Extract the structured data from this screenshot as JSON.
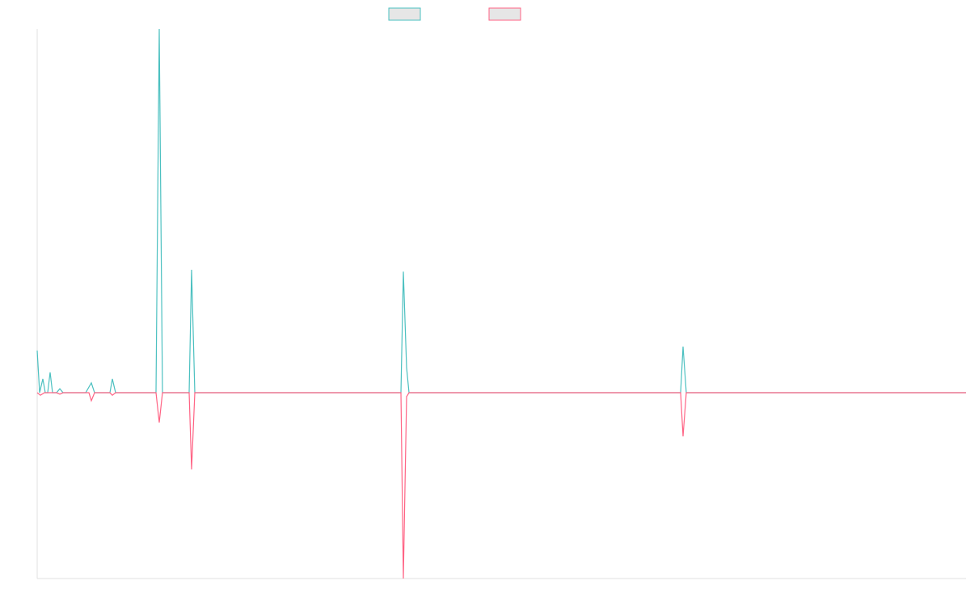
{
  "chart_data": {
    "type": "line",
    "xlim": [
      0,
      1149
    ],
    "ylim": [
      -51.1,
      100
    ],
    "series": [
      {
        "color": "#4bc0c0",
        "x": [
          0,
          3,
          7,
          10,
          13,
          16,
          19,
          24,
          28,
          32,
          60,
          67,
          71,
          90,
          93,
          97,
          147,
          151,
          155,
          188,
          191,
          195,
          450,
          453,
          457,
          460,
          796,
          799,
          803,
          1149
        ],
        "values": [
          11.6,
          0,
          3.8,
          0,
          0,
          5.6,
          0,
          0,
          1.1,
          0,
          0,
          2.7,
          0,
          0,
          3.8,
          0,
          0,
          100,
          0,
          0,
          33.8,
          0,
          0,
          33.3,
          6.9,
          0,
          0,
          12.7,
          0,
          0
        ]
      },
      {
        "color": "#ff6384",
        "x": [
          0,
          4,
          9,
          24,
          28,
          32,
          64,
          67,
          71,
          90,
          93,
          97,
          147,
          151,
          155,
          188,
          191,
          195,
          450,
          453,
          457,
          460,
          796,
          799,
          803,
          1149
        ],
        "values": [
          0,
          -0.7,
          0,
          0,
          -0.4,
          0,
          0,
          -2.2,
          0,
          0,
          -0.7,
          0,
          0,
          -8.2,
          0,
          0,
          -21.1,
          0,
          0,
          -51.1,
          -1.1,
          0,
          0,
          -12,
          0,
          0
        ]
      }
    ]
  }
}
